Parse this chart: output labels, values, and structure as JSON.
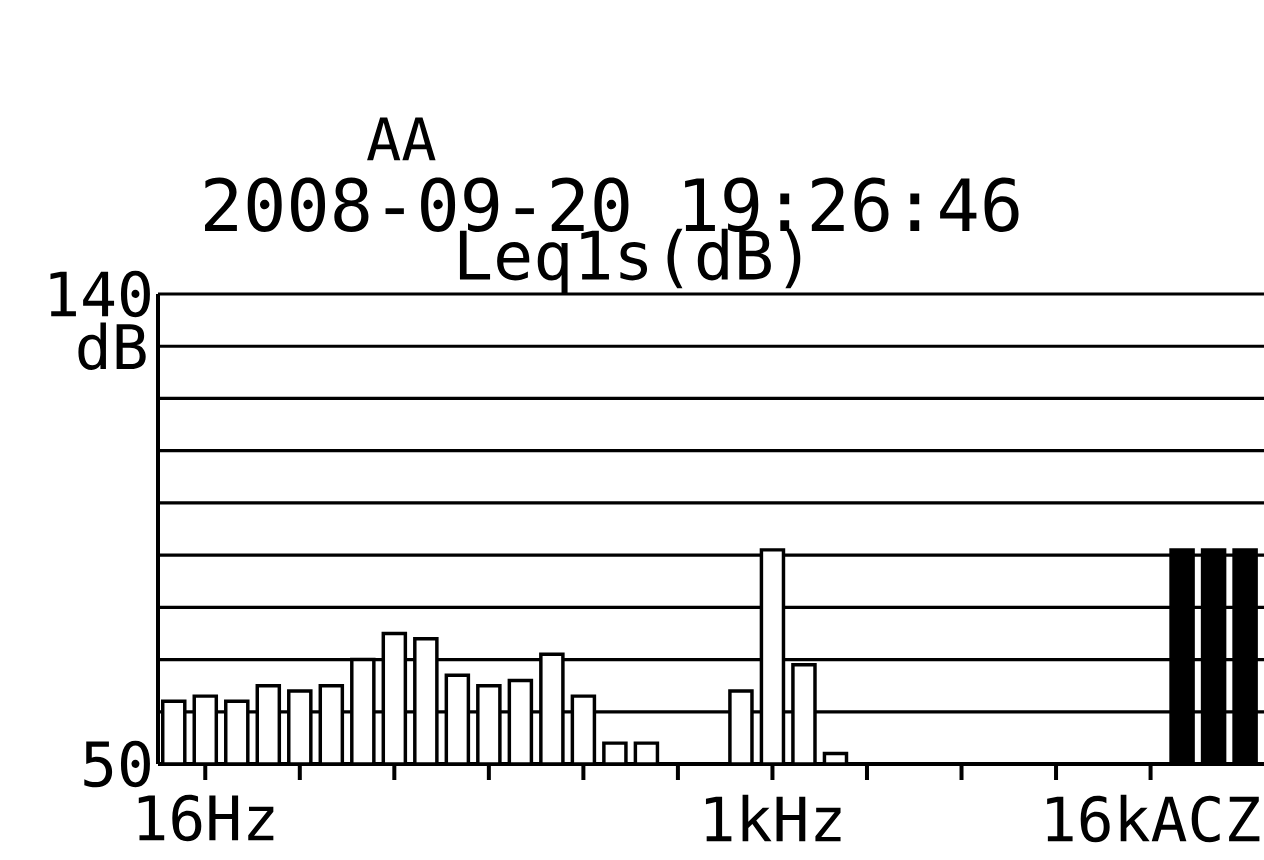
{
  "chart_data": {
    "type": "bar",
    "title": "AA",
    "subtitle": "2008-09-20 19:26:46",
    "annotations": [
      "Leq1s(dB)"
    ],
    "ylabel": "dB",
    "categories": [
      null,
      "16Hz",
      null,
      null,
      null,
      null,
      null,
      null,
      null,
      null,
      null,
      null,
      null,
      null,
      null,
      null,
      null,
      null,
      null,
      "1kHz",
      null,
      null,
      null,
      null,
      null,
      null,
      null,
      null,
      null,
      null,
      null,
      "16kACZ",
      null,
      null,
      null
    ],
    "values": [
      62,
      63,
      62,
      65,
      64,
      65,
      70,
      75,
      74,
      67,
      65,
      66,
      71,
      63,
      54,
      54,
      null,
      null,
      64,
      91,
      69,
      52,
      null,
      null,
      null,
      null,
      null,
      null,
      null,
      null,
      null,
      null,
      91,
      91,
      91
    ],
    "colors": [
      "#ffffff",
      "#ffffff",
      "#ffffff",
      "#ffffff",
      "#ffffff",
      "#ffffff",
      "#ffffff",
      "#ffffff",
      "#ffffff",
      "#ffffff",
      "#ffffff",
      "#ffffff",
      "#ffffff",
      "#ffffff",
      "#ffffff",
      "#ffffff",
      "#ffffff",
      "#ffffff",
      "#ffffff",
      "#ffffff",
      "#ffffff",
      "#ffffff",
      "#ffffff",
      "#ffffff",
      "#ffffff",
      "#ffffff",
      "#ffffff",
      "#ffffff",
      "#ffffff",
      "#ffffff",
      "#ffffff",
      "#ffffff",
      "#000000",
      "#000000",
      "#000000"
    ],
    "ylim": [
      50,
      140
    ],
    "yticks": [
      50,
      {
        "value": 60,
        "label": null
      },
      {
        "value": 70,
        "label": null
      },
      {
        "value": 80,
        "label": null
      },
      {
        "value": 90,
        "label": null
      },
      {
        "value": 100,
        "label": null
      },
      {
        "value": 110,
        "label": null
      },
      {
        "value": 120,
        "label": null
      },
      {
        "value": 130,
        "label": null
      },
      140
    ],
    "grid": "y"
  }
}
